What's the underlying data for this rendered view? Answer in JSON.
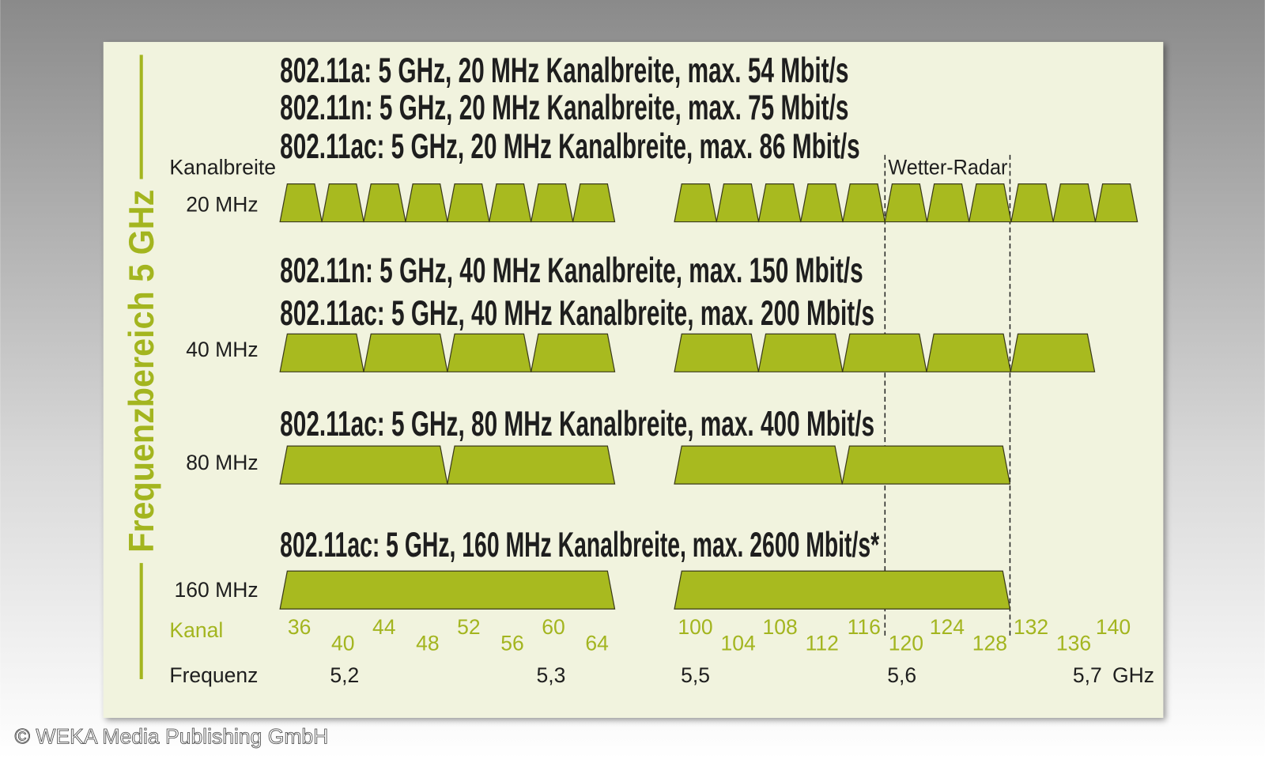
{
  "side_label": "Frequenzbereich 5 GHz",
  "column_label": "Kanalbreite",
  "rows": [
    {
      "width_label": "20 MHz",
      "headings": [
        "802.11a: 5 GHz, 20 MHz Kanalbreite, max. 54 Mbit/s",
        "802.11n: 5 GHz, 20 MHz Kanalbreite, max. 75 Mbit/s",
        "802.11ac: 5 GHz, 20 MHz Kanalbreite, max. 86 Mbit/s"
      ]
    },
    {
      "width_label": "40 MHz",
      "headings": [
        "802.11n: 5 GHz, 40 MHz Kanalbreite, max. 150 Mbit/s",
        "802.11ac: 5 GHz, 40 MHz Kanalbreite, max. 200 Mbit/s"
      ]
    },
    {
      "width_label": "80 MHz",
      "headings": [
        "802.11ac: 5 GHz, 80 MHz Kanalbreite, max. 400 Mbit/s"
      ]
    },
    {
      "width_label": "160 MHz",
      "headings": [
        "802.11ac: 5 GHz, 160 MHz Kanalbreite, max. 2600 Mbit/s*"
      ]
    }
  ],
  "radar_label": "Wetter-Radar",
  "channel_label": "Kanal",
  "channels": [
    36,
    40,
    44,
    48,
    52,
    56,
    60,
    64,
    100,
    104,
    108,
    112,
    116,
    120,
    124,
    128,
    132,
    136,
    140
  ],
  "frequency_label": "Frequenz",
  "frequencies": [
    "5,2",
    "5,3",
    "5,5",
    "5,6",
    "5,7"
  ],
  "frequency_unit": "GHz",
  "copyright": "© WEKA Media Publishing GmbH"
}
